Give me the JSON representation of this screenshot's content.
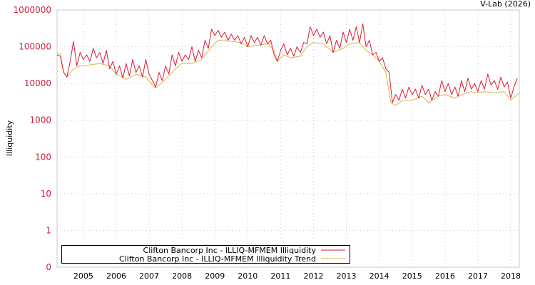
{
  "chart_data": {
    "type": "line",
    "title": "V-Lab (2026)",
    "xlabel": "",
    "ylabel": "Illiquidity",
    "yscale": "log",
    "ylim": [
      0.1,
      1000000
    ],
    "xlim": [
      2004.2,
      2018.26
    ],
    "y_tick_labels": [
      "1000000",
      "100000",
      "10000",
      "1000",
      "100",
      "10",
      "1",
      "0"
    ],
    "y_tick_values": [
      1000000,
      100000,
      10000,
      1000,
      100,
      10,
      1,
      0.1
    ],
    "x_tick_labels": [
      "2005",
      "2006",
      "2007",
      "2008",
      "2009",
      "2010",
      "2011",
      "2012",
      "2013",
      "2014",
      "2015",
      "2016",
      "2017",
      "2018"
    ],
    "x_tick_values": [
      2005,
      2006,
      2007,
      2008,
      2009,
      2010,
      2011,
      2012,
      2013,
      2014,
      2015,
      2016,
      2017,
      2018
    ],
    "grid": true,
    "legend_position": "bottom-left",
    "colors": {
      "illiquidity": "#dd1a33",
      "trend": "#d9b44a",
      "ytick": "#d0203a"
    },
    "series": [
      {
        "name": "Clifton Bancorp Inc - ILLIQ-MFMEM Illiquidity",
        "x_start": 2004.2,
        "x_step": 0.1,
        "values": [
          60000,
          55000,
          20000,
          15000,
          40000,
          140000,
          30000,
          70000,
          45000,
          60000,
          40000,
          90000,
          50000,
          70000,
          35000,
          80000,
          25000,
          40000,
          18000,
          30000,
          14000,
          35000,
          16000,
          45000,
          20000,
          30000,
          15000,
          45000,
          18000,
          12000,
          8000,
          20000,
          12000,
          30000,
          18000,
          60000,
          30000,
          70000,
          40000,
          60000,
          45000,
          100000,
          40000,
          80000,
          50000,
          150000,
          90000,
          300000,
          200000,
          280000,
          180000,
          250000,
          150000,
          220000,
          150000,
          200000,
          120000,
          180000,
          100000,
          200000,
          130000,
          180000,
          110000,
          200000,
          120000,
          150000,
          60000,
          40000,
          80000,
          120000,
          60000,
          90000,
          55000,
          100000,
          70000,
          130000,
          120000,
          350000,
          200000,
          300000,
          180000,
          250000,
          120000,
          200000,
          70000,
          150000,
          90000,
          250000,
          130000,
          300000,
          150000,
          350000,
          130000,
          420000,
          100000,
          150000,
          60000,
          70000,
          40000,
          50000,
          25000,
          20000,
          3000,
          5000,
          3500,
          7000,
          4000,
          8000,
          5000,
          7000,
          4000,
          9000,
          5000,
          7000,
          3500,
          6000,
          4500,
          12000,
          6000,
          10000,
          5000,
          8000,
          4500,
          12000,
          6000,
          14000,
          7000,
          10000,
          6000,
          12000,
          7000,
          18000,
          9000,
          12000,
          7000,
          15000,
          8000,
          11000,
          4000,
          8000,
          14000
        ]
      },
      {
        "name": "Clifton Bancorp Inc - ILLIQ-MFMEM Illiquidity Trend",
        "points": [
          [
            2004.2,
            65000
          ],
          [
            2004.3,
            65000
          ],
          [
            2004.4,
            20000
          ],
          [
            2004.5,
            15000
          ],
          [
            2004.7,
            25000
          ],
          [
            2004.9,
            30000
          ],
          [
            2005.2,
            32000
          ],
          [
            2005.5,
            35000
          ],
          [
            2005.8,
            30000
          ],
          [
            2006.0,
            18000
          ],
          [
            2006.3,
            13000
          ],
          [
            2006.6,
            18000
          ],
          [
            2006.9,
            15000
          ],
          [
            2007.1,
            9000
          ],
          [
            2007.2,
            7500
          ],
          [
            2007.5,
            13000
          ],
          [
            2007.8,
            25000
          ],
          [
            2008.0,
            35000
          ],
          [
            2008.3,
            35000
          ],
          [
            2008.6,
            45000
          ],
          [
            2008.9,
            100000
          ],
          [
            2009.1,
            150000
          ],
          [
            2009.5,
            140000
          ],
          [
            2009.8,
            130000
          ],
          [
            2010.0,
            100000
          ],
          [
            2010.3,
            110000
          ],
          [
            2010.6,
            120000
          ],
          [
            2010.8,
            80000
          ],
          [
            2010.9,
            40000
          ],
          [
            2011.1,
            60000
          ],
          [
            2011.3,
            50000
          ],
          [
            2011.6,
            55000
          ],
          [
            2011.8,
            100000
          ],
          [
            2012.0,
            130000
          ],
          [
            2012.3,
            120000
          ],
          [
            2012.6,
            70000
          ],
          [
            2012.9,
            90000
          ],
          [
            2013.1,
            120000
          ],
          [
            2013.4,
            130000
          ],
          [
            2013.6,
            80000
          ],
          [
            2013.8,
            60000
          ],
          [
            2014.0,
            40000
          ],
          [
            2014.2,
            20000
          ],
          [
            2014.35,
            3000
          ],
          [
            2014.5,
            2500
          ],
          [
            2014.7,
            3500
          ],
          [
            2015.0,
            3500
          ],
          [
            2015.3,
            4500
          ],
          [
            2015.5,
            3000
          ],
          [
            2015.8,
            4500
          ],
          [
            2016.0,
            5000
          ],
          [
            2016.3,
            4000
          ],
          [
            2016.5,
            5000
          ],
          [
            2016.8,
            6000
          ],
          [
            2017.0,
            5500
          ],
          [
            2017.2,
            6000
          ],
          [
            2017.5,
            5500
          ],
          [
            2017.8,
            6000
          ],
          [
            2018.0,
            3500
          ],
          [
            2018.26,
            5500
          ]
        ]
      }
    ]
  }
}
